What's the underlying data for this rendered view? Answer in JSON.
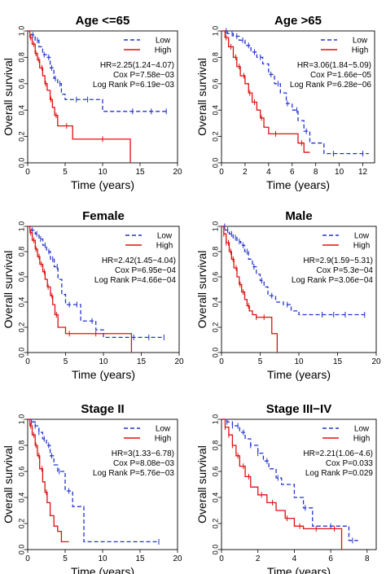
{
  "figure": {
    "background": "#ffffff",
    "low_color": "#2233cc",
    "high_color": "#dd1111"
  },
  "chart_data": [
    {
      "type": "line",
      "title": "Age <=65",
      "xlabel": "Time (years)",
      "ylabel": "Overall survival",
      "xlim": [
        0,
        20
      ],
      "ylim": [
        0,
        1
      ],
      "xticks": [
        "0",
        "5",
        "10",
        "15",
        "20"
      ],
      "yticks": [
        "0.0",
        "0.2",
        "0.4",
        "0.6",
        "0.8",
        "1.0"
      ],
      "legend": "top-right",
      "grid": false,
      "stats": [
        "HR=2.25(1.24−4.07)",
        "Cox P=7.58e−03",
        "Log Rank P=6.19e−03"
      ],
      "series": [
        {
          "name": "Low",
          "dash": true,
          "x": [
            0,
            0.5,
            1,
            1.5,
            2,
            2.5,
            3,
            3.5,
            4,
            4.5,
            5,
            6,
            7,
            8,
            9,
            10,
            12,
            14,
            16,
            18.5
          ],
          "y": [
            1,
            0.97,
            0.93,
            0.88,
            0.82,
            0.8,
            0.72,
            0.64,
            0.6,
            0.52,
            0.48,
            0.48,
            0.48,
            0.48,
            0.48,
            0.39,
            0.39,
            0.39,
            0.39,
            0.39
          ],
          "censor_x": [
            0.7,
            1.3,
            2.2,
            2.8,
            3.2,
            3.7,
            4.3,
            6.5,
            8,
            14,
            16.5,
            18.5
          ]
        },
        {
          "name": "High",
          "dash": false,
          "x": [
            0,
            0.3,
            0.6,
            1,
            1.3,
            1.6,
            2,
            2.3,
            2.6,
            3,
            3.3,
            3.6,
            4,
            5,
            6,
            7,
            9,
            11,
            13,
            13.7
          ],
          "y": [
            1,
            0.95,
            0.9,
            0.83,
            0.78,
            0.72,
            0.66,
            0.6,
            0.55,
            0.48,
            0.42,
            0.36,
            0.28,
            0.28,
            0.18,
            0.18,
            0.18,
            0.18,
            0.18,
            0
          ],
          "censor_x": [
            0.4,
            0.8,
            1.1,
            1.5,
            1.9,
            2.4,
            3.1,
            3.8,
            5.2,
            10
          ]
        }
      ]
    },
    {
      "type": "line",
      "title": "Age >65",
      "xlabel": "Time (years)",
      "ylabel": "Overall survival",
      "xlim": [
        0,
        13
      ],
      "ylim": [
        0,
        1
      ],
      "xticks": [
        "0",
        "2",
        "4",
        "6",
        "8",
        "10",
        "12"
      ],
      "yticks": [
        "0.0",
        "0.2",
        "0.4",
        "0.6",
        "0.8",
        "1.0"
      ],
      "legend": "top-right",
      "grid": false,
      "stats": [
        "HR=3.06(1.84−5.09)",
        "Cox P=1.66e−05",
        "Log Rank P=6.28e−06"
      ],
      "series": [
        {
          "name": "Low",
          "dash": true,
          "x": [
            0,
            0.5,
            1,
            1.5,
            2,
            2.5,
            3,
            3.5,
            4,
            4.5,
            5,
            5.5,
            6,
            6.5,
            7,
            7.5,
            8,
            8.7,
            10,
            12.5
          ],
          "y": [
            1,
            0.98,
            0.96,
            0.93,
            0.89,
            0.84,
            0.8,
            0.75,
            0.67,
            0.6,
            0.53,
            0.45,
            0.4,
            0.32,
            0.24,
            0.15,
            0.15,
            0.07,
            0.07,
            0.07
          ],
          "censor_x": [
            0.4,
            0.9,
            1.3,
            1.8,
            2.3,
            2.8,
            3.3,
            4.2,
            4.8,
            5.6,
            6.4,
            7.2,
            9.5,
            12
          ]
        },
        {
          "name": "High",
          "dash": false,
          "x": [
            0,
            0.3,
            0.6,
            1,
            1.3,
            1.6,
            2,
            2.3,
            2.6,
            3,
            3.3,
            3.6,
            4,
            4.5,
            5,
            5.5,
            6,
            6.5,
            7,
            7.5
          ],
          "y": [
            1,
            0.95,
            0.88,
            0.8,
            0.73,
            0.66,
            0.6,
            0.53,
            0.46,
            0.4,
            0.34,
            0.27,
            0.22,
            0.22,
            0.22,
            0.22,
            0.22,
            0.15,
            0.08,
            0.08
          ],
          "censor_x": [
            0.4,
            0.8,
            1.2,
            1.5,
            1.9,
            2.4,
            2.8,
            3.4,
            4.6,
            6.8
          ]
        }
      ]
    },
    {
      "type": "line",
      "title": "Female",
      "xlabel": "Time (years)",
      "ylabel": "Overall survival",
      "xlim": [
        0,
        20
      ],
      "ylim": [
        0,
        1
      ],
      "xticks": [
        "0",
        "5",
        "10",
        "15",
        "20"
      ],
      "yticks": [
        "0.0",
        "0.2",
        "0.4",
        "0.6",
        "0.8",
        "1.0"
      ],
      "legend": "top-right",
      "grid": false,
      "stats": [
        "HR=2.42(1.45−4.04)",
        "Cox P=6.95e−04",
        "Log Rank P=4.66e−04"
      ],
      "series": [
        {
          "name": "Low",
          "dash": true,
          "x": [
            0,
            0.5,
            1,
            1.5,
            2,
            2.5,
            3,
            3.5,
            4,
            4.5,
            5,
            6,
            7,
            8,
            8.5,
            9,
            10,
            12,
            15,
            18
          ],
          "y": [
            1,
            0.97,
            0.94,
            0.9,
            0.85,
            0.8,
            0.74,
            0.68,
            0.58,
            0.46,
            0.38,
            0.38,
            0.25,
            0.25,
            0.25,
            0.18,
            0.12,
            0.12,
            0.12,
            0.12
          ],
          "censor_x": [
            0.6,
            1.2,
            1.7,
            2.3,
            2.8,
            3.3,
            3.9,
            5.5,
            6.5,
            8.5,
            14,
            16,
            18
          ]
        },
        {
          "name": "High",
          "dash": false,
          "x": [
            0,
            0.3,
            0.6,
            1,
            1.3,
            1.6,
            2,
            2.3,
            2.6,
            3,
            3.3,
            3.6,
            4,
            4.5,
            5,
            6,
            8,
            10,
            12,
            13.7
          ],
          "y": [
            1,
            0.95,
            0.89,
            0.82,
            0.76,
            0.7,
            0.64,
            0.58,
            0.52,
            0.45,
            0.38,
            0.3,
            0.2,
            0.2,
            0.15,
            0.15,
            0.15,
            0.15,
            0.15,
            0
          ],
          "censor_x": [
            0.4,
            0.8,
            1.1,
            1.5,
            1.8,
            2.2,
            2.7,
            3.2,
            3.8,
            5.5,
            9
          ]
        }
      ]
    },
    {
      "type": "line",
      "title": "Male",
      "xlabel": "Time (years)",
      "ylabel": "Overall survival",
      "xlim": [
        0,
        20
      ],
      "ylim": [
        0,
        1
      ],
      "xticks": [
        "0",
        "5",
        "10",
        "15",
        "20"
      ],
      "yticks": [
        "0.0",
        "0.2",
        "0.4",
        "0.6",
        "0.8",
        "1.0"
      ],
      "legend": "top-right",
      "grid": false,
      "stats": [
        "HR=2.9(1.59−5.31)",
        "Cox P=5.3e−04",
        "Log Rank P=3.06e−04"
      ],
      "series": [
        {
          "name": "Low",
          "dash": true,
          "x": [
            0,
            0.5,
            1,
            1.5,
            2,
            2.5,
            3,
            3.5,
            4,
            4.5,
            5,
            5.5,
            6,
            7,
            8,
            9,
            10,
            12,
            15,
            18.5
          ],
          "y": [
            1,
            0.97,
            0.94,
            0.91,
            0.88,
            0.85,
            0.8,
            0.74,
            0.68,
            0.62,
            0.57,
            0.52,
            0.45,
            0.4,
            0.38,
            0.33,
            0.3,
            0.3,
            0.3,
            0.3
          ],
          "censor_x": [
            0.4,
            0.8,
            1.3,
            1.8,
            2.3,
            2.8,
            3.3,
            4.2,
            5.2,
            6.5,
            8.5,
            13,
            14.5,
            16,
            18.5
          ]
        },
        {
          "name": "High",
          "dash": false,
          "x": [
            0,
            0.3,
            0.6,
            1,
            1.3,
            1.6,
            2,
            2.3,
            2.6,
            3,
            3.3,
            3.6,
            4,
            4.5,
            5,
            5.5,
            6,
            6.5,
            7,
            7.2
          ],
          "y": [
            1,
            0.94,
            0.87,
            0.8,
            0.74,
            0.67,
            0.6,
            0.54,
            0.48,
            0.42,
            0.37,
            0.33,
            0.3,
            0.28,
            0.28,
            0.28,
            0.28,
            0.15,
            0.15,
            0
          ],
          "censor_x": [
            0.3,
            0.6,
            0.9,
            1.2,
            1.5,
            1.9,
            2.4,
            2.8,
            3.5,
            4.5,
            5.5
          ]
        }
      ]
    },
    {
      "type": "line",
      "title": "Stage II",
      "xlabel": "Time (years)",
      "ylabel": "Overall survival",
      "xlim": [
        0,
        20
      ],
      "ylim": [
        0,
        1
      ],
      "xticks": [
        "0",
        "5",
        "10",
        "15",
        "20"
      ],
      "yticks": [
        "0.0",
        "0.2",
        "0.4",
        "0.6",
        "0.8",
        "1.0"
      ],
      "legend": "top-right",
      "grid": false,
      "stats": [
        "HR=3(1.33−6.78)",
        "Cox P=8.08e−03",
        "Log Rank P=5.76e−03"
      ],
      "series": [
        {
          "name": "Low",
          "dash": true,
          "x": [
            0,
            0.5,
            1,
            1.5,
            2,
            2.5,
            3,
            3.5,
            4,
            5,
            6,
            7,
            7.5,
            8,
            10,
            12,
            14,
            16,
            17.5
          ],
          "y": [
            1,
            0.98,
            0.95,
            0.9,
            0.85,
            0.8,
            0.72,
            0.65,
            0.6,
            0.45,
            0.33,
            0.33,
            0.06,
            0.06,
            0.06,
            0.06,
            0.06,
            0.06,
            0.06
          ],
          "censor_x": [
            0.5,
            1,
            1.5,
            2.2,
            2.8,
            3.2,
            4.2,
            5.5,
            17.5
          ]
        },
        {
          "name": "High",
          "dash": false,
          "x": [
            0,
            0.3,
            0.6,
            1,
            1.3,
            1.6,
            2,
            2.3,
            2.6,
            3,
            3.5,
            4,
            4.5,
            5,
            5.5
          ],
          "y": [
            1,
            0.95,
            0.88,
            0.8,
            0.72,
            0.62,
            0.52,
            0.44,
            0.36,
            0.26,
            0.18,
            0.14,
            0.06,
            0.06,
            0.06
          ],
          "censor_x": [
            0.4,
            0.8,
            1.1,
            1.5,
            1.9,
            2.5
          ]
        }
      ]
    },
    {
      "type": "line",
      "title": "Stage III−IV",
      "xlabel": "Time (years)",
      "ylabel": "Overall survival",
      "xlim": [
        0,
        8.5
      ],
      "ylim": [
        0,
        1
      ],
      "xticks": [
        "0",
        "2",
        "4",
        "6",
        "8"
      ],
      "yticks": [
        "0.0",
        "0.2",
        "0.4",
        "0.6",
        "0.8",
        "1.0"
      ],
      "legend": "top-right",
      "grid": false,
      "stats": [
        "HR=2.21(1.06−4.6)",
        "Cox P=0.033",
        "Log Rank P=0.029"
      ],
      "series": [
        {
          "name": "Low",
          "dash": true,
          "x": [
            0,
            0.3,
            0.6,
            1,
            1.3,
            1.6,
            2,
            2.3,
            2.6,
            3,
            3.3,
            3.6,
            4,
            4.5,
            5,
            5.5,
            6,
            6.5,
            7,
            7.5
          ],
          "y": [
            1,
            0.98,
            0.95,
            0.9,
            0.85,
            0.8,
            0.74,
            0.68,
            0.62,
            0.55,
            0.5,
            0.5,
            0.4,
            0.32,
            0.18,
            0.18,
            0.18,
            0.18,
            0.07,
            0.07
          ],
          "censor_x": [
            0.3,
            0.6,
            0.9,
            1.2,
            1.6,
            2,
            2.5,
            3.1,
            4.6,
            6,
            7.2
          ]
        },
        {
          "name": "High",
          "dash": false,
          "x": [
            0,
            0.2,
            0.4,
            0.6,
            0.8,
            1,
            1.3,
            1.6,
            2,
            2.5,
            3,
            3.5,
            4,
            4.5,
            5,
            5.5,
            6,
            6.5,
            6.6
          ],
          "y": [
            1,
            0.94,
            0.88,
            0.8,
            0.72,
            0.64,
            0.56,
            0.48,
            0.42,
            0.36,
            0.3,
            0.24,
            0.18,
            0.16,
            0.16,
            0.16,
            0.16,
            0.16,
            0
          ],
          "censor_x": [
            0.2,
            0.4,
            0.6,
            0.9,
            1.2,
            1.5,
            2.2,
            2.8,
            3.6,
            4.3,
            5.2,
            6.2
          ]
        }
      ]
    }
  ]
}
